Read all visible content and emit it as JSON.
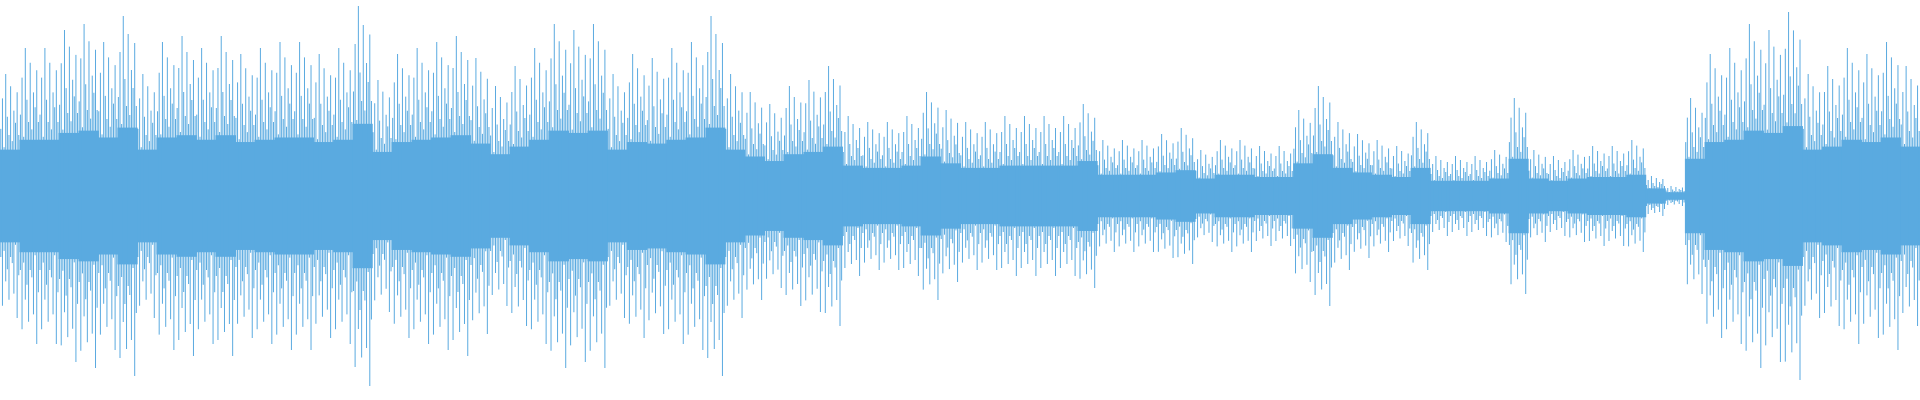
{
  "waveform": {
    "color": "#5aaae0",
    "amplitudes": [
      0.61,
      0.74,
      0.74,
      0.83,
      0.86,
      0.77,
      0.9,
      0.61,
      0.77,
      0.8,
      0.74,
      0.8,
      0.71,
      0.74,
      0.77,
      0.77,
      0.71,
      0.74,
      0.95,
      0.58,
      0.71,
      0.74,
      0.77,
      0.8,
      0.69,
      0.55,
      0.65,
      0.74,
      0.86,
      0.83,
      0.86,
      0.61,
      0.71,
      0.69,
      0.74,
      0.77,
      0.9,
      0.61,
      0.52,
      0.46,
      0.55,
      0.58,
      0.65,
      0.4,
      0.37,
      0.37,
      0.4,
      0.52,
      0.43,
      0.37,
      0.37,
      0.4,
      0.4,
      0.4,
      0.4,
      0.46,
      0.28,
      0.28,
      0.28,
      0.31,
      0.34,
      0.23,
      0.28,
      0.28,
      0.25,
      0.25,
      0.43,
      0.55,
      0.37,
      0.31,
      0.28,
      0.25,
      0.37,
      0.2,
      0.2,
      0.2,
      0.23,
      0.49,
      0.23,
      0.2,
      0.23,
      0.25,
      0.25,
      0.28,
      0.1,
      0.05,
      0.49,
      0.71,
      0.74,
      0.86,
      0.83,
      0.92,
      0.61,
      0.65,
      0.74,
      0.71,
      0.77,
      0.65
    ]
  }
}
